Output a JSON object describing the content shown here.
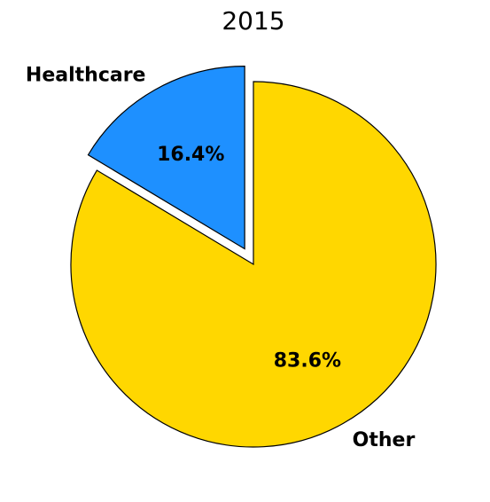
{
  "chart_data": {
    "type": "pie",
    "title": "2015",
    "slices": [
      {
        "label": "Healthcare",
        "value": 16.4,
        "value_label": "16.4%",
        "color": "#1E90FF",
        "exploded": true
      },
      {
        "label": "Other",
        "value": 83.6,
        "value_label": "83.6%",
        "color": "#FFD700",
        "exploded": false
      }
    ],
    "start_angle_deg": 90,
    "direction": "counterclockwise"
  }
}
